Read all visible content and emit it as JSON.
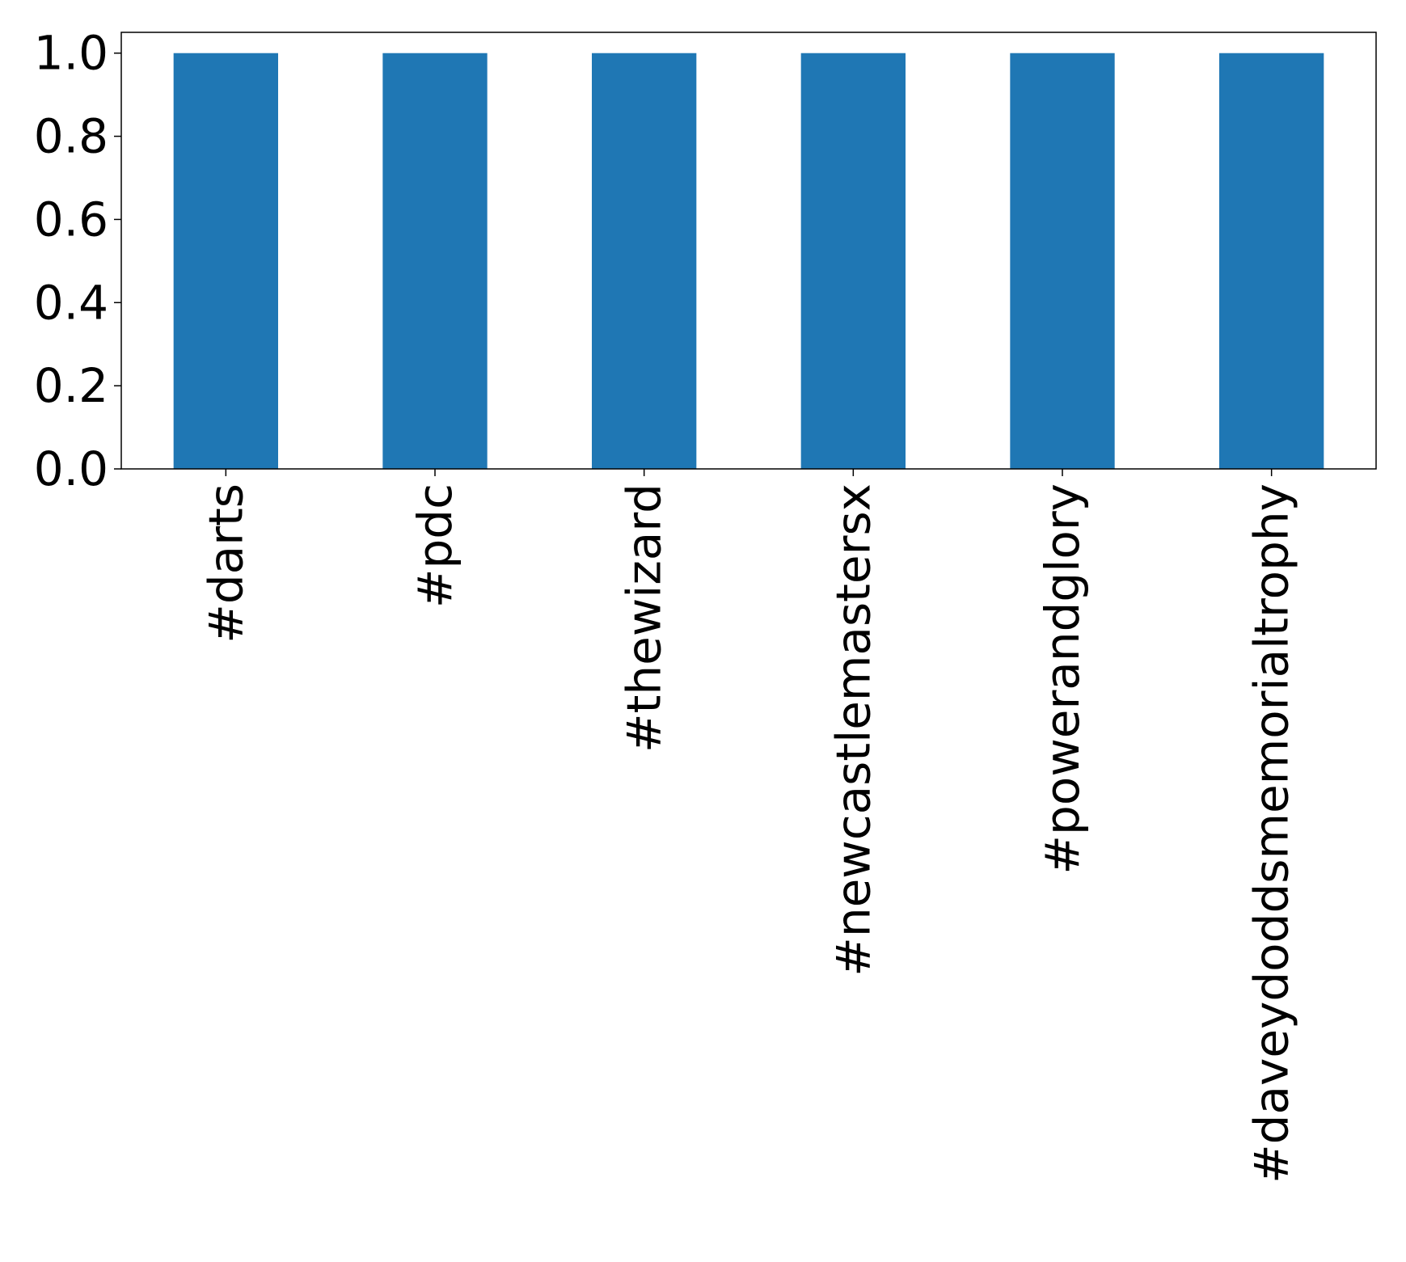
{
  "chart_data": {
    "type": "bar",
    "categories": [
      "#darts",
      "#pdc",
      "#thewizard",
      "#newcastlemastersx",
      "#powerandglory",
      "#daveydoddsmemorialtrophy"
    ],
    "values": [
      1,
      1,
      1,
      1,
      1,
      1
    ],
    "yticks": [
      "0.0",
      "0.2",
      "0.4",
      "0.6",
      "0.8",
      "1.0"
    ],
    "title": "",
    "xlabel": "",
    "ylabel": "",
    "ylim": [
      0,
      1.05
    ],
    "grid": false,
    "legend": "none",
    "bar_color": "#1f77b4"
  }
}
